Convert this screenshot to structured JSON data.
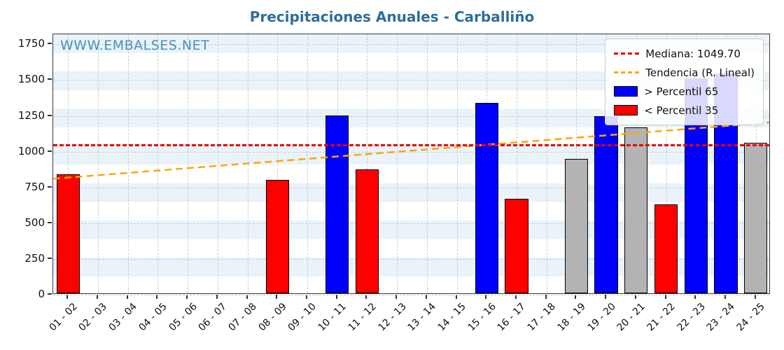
{
  "watermark": "WWW.EMBALSES.NET",
  "colors": {
    "title": "#2d6e9e",
    "watermark": "#4a90b8",
    "p65": "#0000ff",
    "p35": "#ff0000",
    "mid": "#b3b3b3",
    "median_line": "#e60000",
    "trend_line": "#ffa500",
    "bar_edge": "#000000",
    "grid": "#c3cdd3",
    "stripe": "#e9f3f9"
  },
  "chart_data": {
    "type": "bar",
    "title": "Precipitaciones Anuales - Carballiño",
    "xlabel": "",
    "ylabel": "",
    "categories": [
      "01 - 02",
      "02 - 03",
      "03 - 04",
      "04 - 05",
      "05 - 06",
      "06 - 07",
      "07 - 08",
      "08 - 09",
      "09 - 10",
      "10 - 11",
      "11 - 12",
      "12 - 13",
      "13 - 14",
      "14 - 15",
      "15 - 16",
      "16 - 17",
      "17 - 18",
      "18 - 19",
      "19 - 20",
      "20 - 21",
      "21 - 22",
      "22 - 23",
      "23 - 24",
      "24 - 25"
    ],
    "values": [
      830,
      null,
      null,
      null,
      null,
      null,
      null,
      795,
      null,
      1245,
      865,
      null,
      null,
      null,
      1330,
      660,
      null,
      940,
      1240,
      1160,
      620,
      1500,
      1535,
      1050
    ],
    "bar_classes": [
      "p35",
      null,
      null,
      null,
      null,
      null,
      null,
      "p35",
      null,
      "p65",
      "p35",
      null,
      null,
      null,
      "p65",
      "p35",
      null,
      "mid",
      "p65",
      "mid",
      "p35",
      "p65",
      "p65",
      "mid"
    ],
    "median": 1049.7,
    "median_label": "Mediana: 1049.70",
    "trend_label": "Tendencia (R. Lineal)",
    "p65_label": "> Percentil 65",
    "p35_label": "< Percentil 35",
    "trend": {
      "start": 805,
      "end": 1200
    },
    "yticks": [
      0,
      250,
      500,
      750,
      1000,
      1250,
      1500,
      1750
    ],
    "ylim": [
      0,
      1820
    ],
    "grid": true,
    "legend_position": "upper right"
  }
}
